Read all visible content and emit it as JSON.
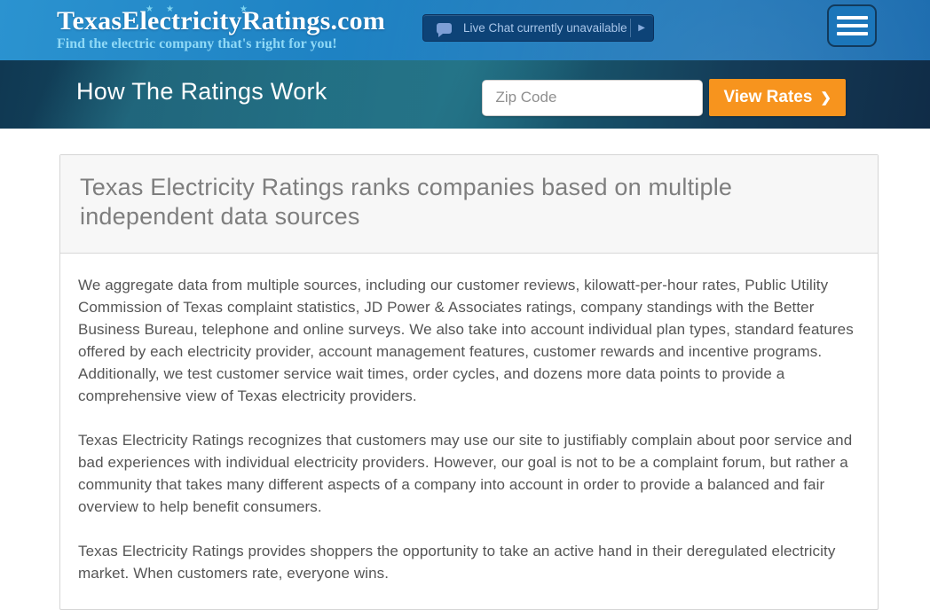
{
  "header": {
    "logo_title": "TexasElectricityRatings.com",
    "logo_tagline": "Find the electric company that's right for you!",
    "logo_star_icon": "★",
    "live_chat_label": "Live Chat currently unavailable",
    "live_chat_arrow": "▶"
  },
  "subheader": {
    "page_title": "How The Ratings Work",
    "zip_placeholder": "Zip Code",
    "zip_value": "",
    "view_rates_label": "View Rates",
    "view_rates_chevron": "❯"
  },
  "content": {
    "heading": "Texas Electricity Ratings ranks companies based on multiple independent data sources",
    "paragraphs": [
      "We aggregate data from multiple sources, including our customer reviews, kilowatt-per-hour rates, Public Utility Commission of Texas complaint statistics, JD Power & Associates ratings, company standings with the Better Business Bureau, telephone and online surveys. We also take into account individual plan types, standard features offered by each electricity provider, account management features, customer rewards and incentive programs. Additionally, we test customer service wait times, order cycles, and dozens more data points to provide a comprehensive view of Texas electricity providers.",
      "Texas Electricity Ratings recognizes that customers may use our site to justifiably complain about poor service and bad experiences with individual electricity providers. However, our goal is not to be a complaint forum, but rather a community that takes many different aspects of a company into account in order to provide a balanced and fair overview to help benefit consumers.",
      "Texas Electricity Ratings provides shoppers the opportunity to take an active hand in their deregulated electricity market. When customers rate, everyone wins."
    ]
  },
  "colors": {
    "accent_orange": "#f7941e",
    "header_blue": "#1b7ec0",
    "subheader_teal": "#1b6478",
    "live_chat_bg": "#0d4377",
    "heading_gray": "#7e7e7e",
    "body_text": "#555555"
  }
}
